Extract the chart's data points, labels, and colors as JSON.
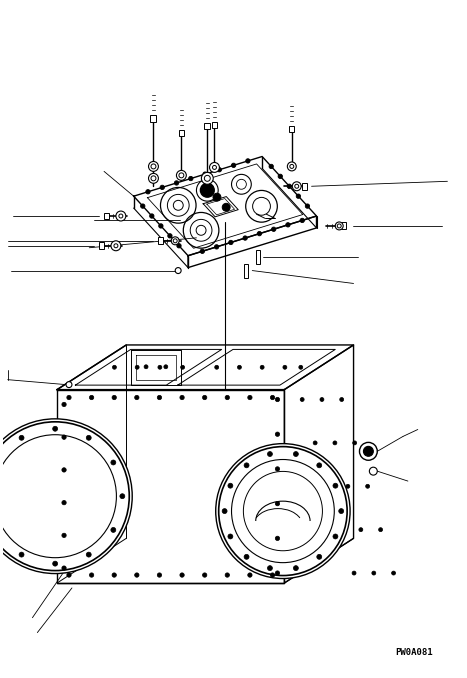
{
  "bg_color": "#ffffff",
  "line_color": "#000000",
  "fig_width": 4.67,
  "fig_height": 6.78,
  "dpi": 100,
  "watermark": "PW0A081",
  "watermark_fontsize": 6.5
}
